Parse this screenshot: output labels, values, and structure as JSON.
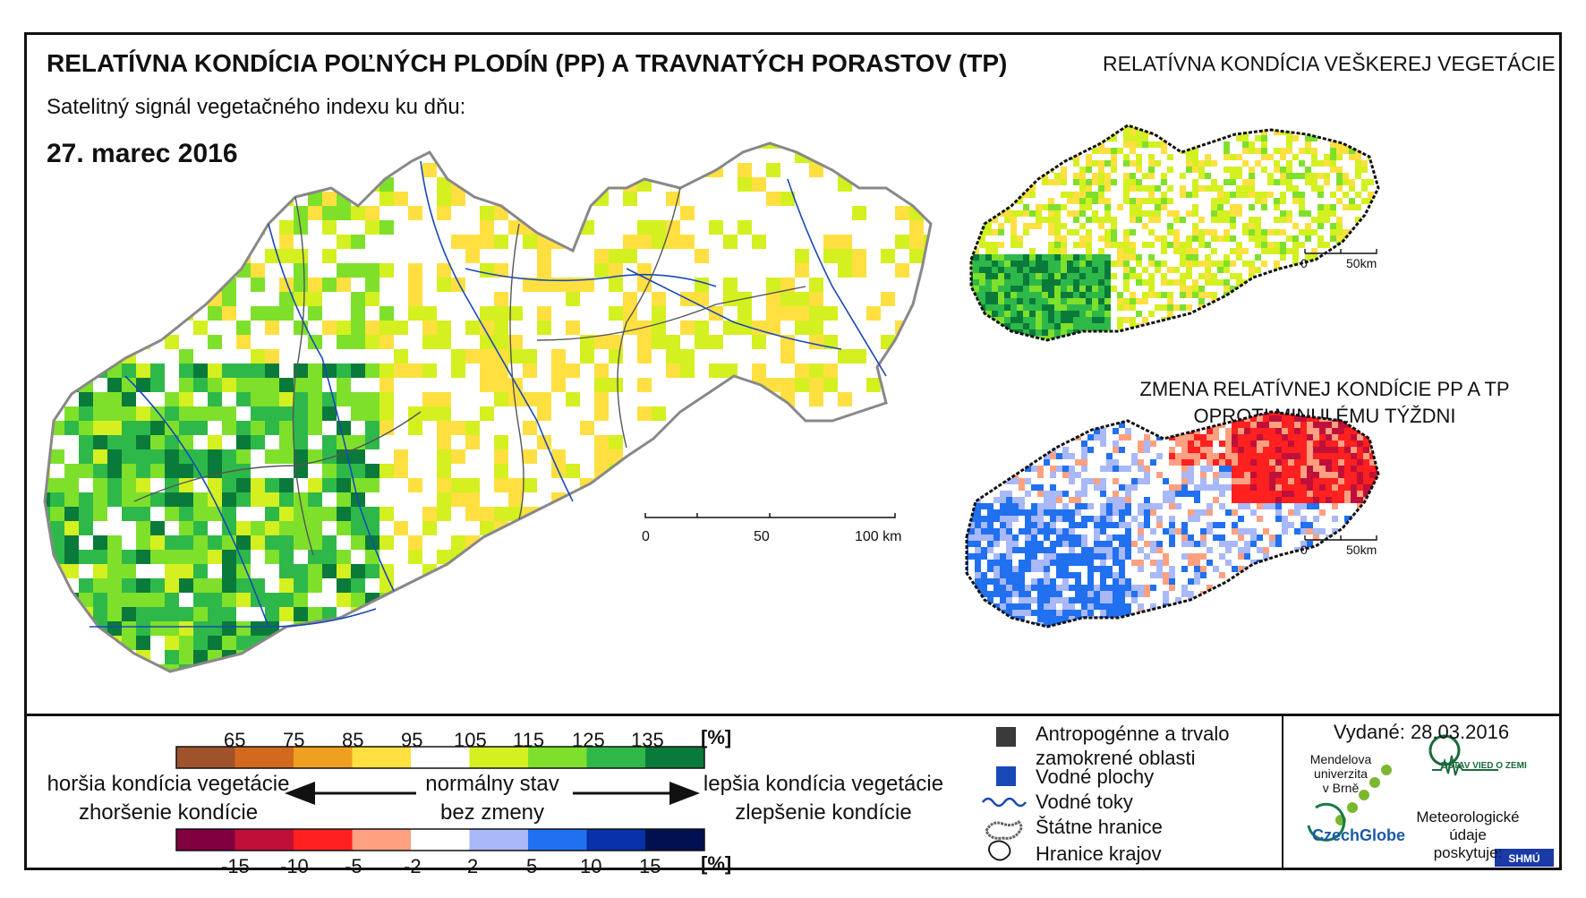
{
  "title": "RELATÍVNA KONDÍCIA POĽNÝCH PLODÍN (PP) A TRAVNATÝCH PORASTOV (TP)",
  "subtitle": "Satelitný signál vegetačného indexu ku dňu:",
  "date": "27. marec 2016",
  "side_title": "RELATÍVNA KONDÍCIA VEŠKEREJ VEGETÁCIE",
  "change_title_line1": "ZMENA RELATÍVNEJ KONDÍCIE PP A TP",
  "change_title_line2": "OPROTI MINULÉMU TÝŽDNI",
  "main_scale": {
    "labels": [
      "0",
      "50",
      "100 km"
    ]
  },
  "small_scale": {
    "labels": [
      "0",
      "50km"
    ]
  },
  "legend_condition": {
    "ticks": [
      "65",
      "75",
      "85",
      "95",
      "105",
      "115",
      "125",
      "135"
    ],
    "unit": "[%]",
    "colors": [
      "#a0522d",
      "#d2691e",
      "#f0a020",
      "#ffe040",
      "#ffffff",
      "#d4f020",
      "#7ee02a",
      "#2eb84a",
      "#0a7a3a"
    ]
  },
  "legend_change": {
    "ticks": [
      "-15",
      "-10",
      "-5",
      "-2",
      "2",
      "5",
      "10",
      "15"
    ],
    "unit": "[%]",
    "colors": [
      "#800040",
      "#c0103a",
      "#ff2020",
      "#ffa080",
      "#ffffff",
      "#a8b8f8",
      "#2070f0",
      "#0830a8",
      "#001050"
    ]
  },
  "left_text": [
    "horšia kondícia vegetácie",
    "zhoršenie kondície"
  ],
  "center_text": [
    "normálny stav",
    "bez zmeny"
  ],
  "right_text": [
    "lepšia kondícia vegetácie",
    "zlepšenie kondície"
  ],
  "map_legend": {
    "anthropogenic": "Antropogénne a trvalo zamokrené oblasti",
    "anthropogenic_line1": "Antropogénne a trvalo",
    "anthropogenic_line2": "zamokrené oblasti",
    "water_areas": "Vodné plochy",
    "rivers": "Vodné toky",
    "borders": "Štátne hranice",
    "regions": "Hranice krajov",
    "colors": {
      "anthropogenic": "#3a3a3a",
      "water": "#1848b8",
      "river": "#1848b8"
    }
  },
  "issued": "Vydané: 28.03.2016",
  "logos": {
    "mendel": [
      "Mendelova",
      "univerzita",
      "v Brně"
    ],
    "czechglobe": "CzechGlobe",
    "usz": "ÚSTAV VIED O ZEMI",
    "meteo": [
      "Meteorologické",
      "údaje",
      "poskytuje:"
    ],
    "shmu": "SHMÚ"
  }
}
